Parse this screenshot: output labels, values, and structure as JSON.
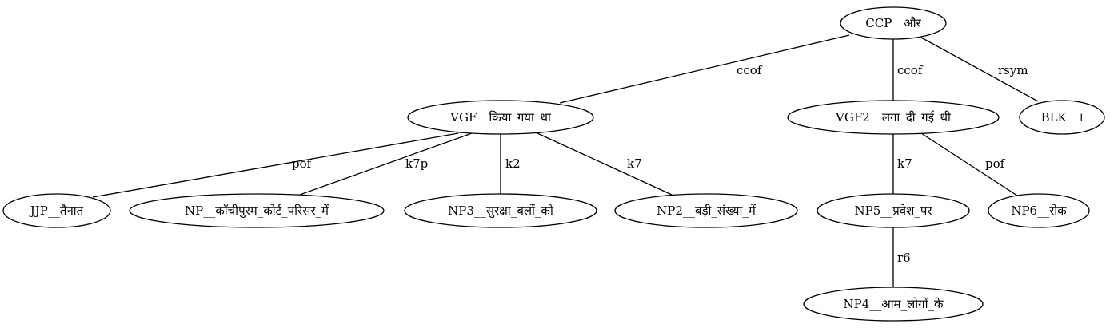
{
  "nodes": {
    "ccp": "CCP__और",
    "vgf": "VGF__किया_गया_था",
    "vgf2": "VGF2__लगा_दी_गई_थी",
    "blk": "BLK__।",
    "jjp": "JJP__तैनात",
    "np": "NP__काँचीपुरम_कोर्ट_परिसर_में",
    "np3": "NP3__सुरक्षा_बलों_को",
    "np2": "NP2__बड़ी_संख्या_में",
    "np5": "NP5__प्रवेश_पर",
    "np6": "NP6__रोक",
    "np4": "NP4__आम_लोगों_के"
  },
  "edges": {
    "ccp_vgf": "ccof",
    "ccp_vgf2": "ccof",
    "ccp_blk": "rsym",
    "vgf_jjp": "pof",
    "vgf_np": "k7p",
    "vgf_np3": "k2",
    "vgf_np2": "k7",
    "vgf2_np5": "k7",
    "vgf2_np6": "pof",
    "np5_np4": "r6"
  }
}
